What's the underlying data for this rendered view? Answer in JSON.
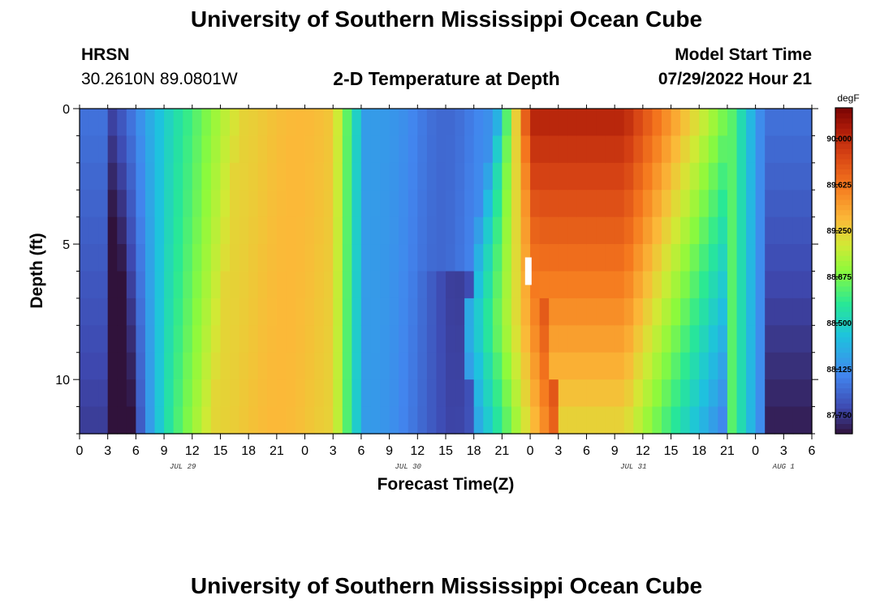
{
  "header": {
    "title": "University of Southern Mississippi Ocean Cube",
    "footer_title": "University of Southern Mississippi Ocean Cube",
    "station": "HRSN",
    "coordinates": "30.2610N  89.0801W",
    "plot_title": "2-D Temperature at Depth",
    "model_label": "Model Start Time",
    "model_time": "07/29/2022 Hour 21"
  },
  "chart_data": {
    "type": "heatmap",
    "title": "2-D Temperature at Depth",
    "xlabel": "Forecast Time(Z)",
    "ylabel": "Depth (ft)",
    "x_range_hours": [
      0,
      78
    ],
    "x_start": "JUL 29 00Z",
    "y_range_ft": [
      0,
      12
    ],
    "x_tick_hours": [
      0,
      3,
      6,
      9,
      12,
      15,
      18,
      21,
      24,
      27,
      30,
      33,
      36,
      39,
      42,
      45,
      48,
      51,
      54,
      57,
      60,
      63,
      66,
      69,
      72,
      75,
      78
    ],
    "x_tick_labels": [
      "0",
      "3",
      "6",
      "9",
      "12",
      "15",
      "18",
      "21",
      "0",
      "3",
      "6",
      "9",
      "12",
      "15",
      "18",
      "21",
      "0",
      "3",
      "6",
      "9",
      "12",
      "15",
      "18",
      "21",
      "0",
      "3",
      "6"
    ],
    "date_labels": [
      {
        "text": "JUL 29",
        "hour": 11
      },
      {
        "text": "JUL 30",
        "hour": 35
      },
      {
        "text": "JUL 31",
        "hour": 59
      },
      {
        "text": "AUG 1",
        "hour": 75
      }
    ],
    "y_ticks": [
      0,
      5,
      10
    ],
    "y_tick_labels": [
      "0",
      "5",
      "10"
    ],
    "colorbar": {
      "unit": "degF",
      "min": 87.6,
      "max": 90.25,
      "ticks": [
        90.0,
        89.625,
        89.25,
        88.875,
        88.5,
        88.125,
        87.75
      ],
      "tick_labels": [
        "90.000",
        "89.625",
        "89.250",
        "88.875",
        "88.500",
        "88.125",
        "87.750"
      ]
    },
    "marker": {
      "hour": 47.8,
      "depth_ft": 6
    },
    "grid": false,
    "n_time_steps": 78,
    "n_depth_levels": 12
  }
}
